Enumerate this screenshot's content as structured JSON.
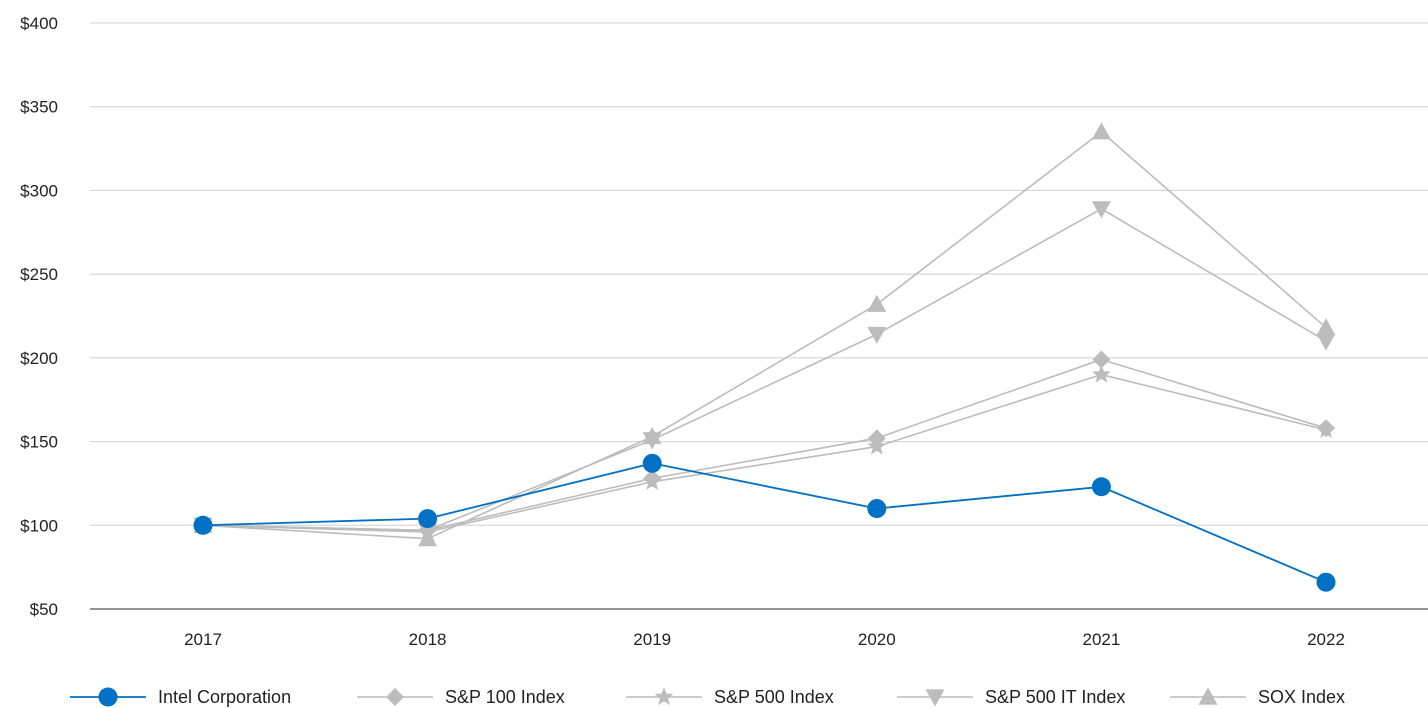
{
  "chart_data": {
    "type": "line",
    "title": "",
    "xlabel": "",
    "ylabel": "",
    "categories": [
      "2017",
      "2018",
      "2019",
      "2020",
      "2021",
      "2022"
    ],
    "ylim": [
      50,
      400
    ],
    "yticks": [
      50,
      100,
      150,
      200,
      250,
      300,
      350,
      400
    ],
    "ytick_labels": [
      "$50",
      "$100",
      "$150",
      "$200",
      "$250",
      "$300",
      "$350",
      "$400"
    ],
    "grid": true,
    "legend_position": "bottom",
    "series": [
      {
        "name": "Intel Corporation",
        "values": [
          100,
          104,
          137,
          110,
          123,
          66
        ],
        "color": "#0071c5",
        "marker": "circle"
      },
      {
        "name": "S&P 100 Index",
        "values": [
          100,
          97,
          128,
          152,
          199,
          158
        ],
        "color": "#bcbcbc",
        "marker": "diamond"
      },
      {
        "name": "S&P 500 Index",
        "values": [
          100,
          96,
          126,
          147,
          190,
          157
        ],
        "color": "#bcbcbc",
        "marker": "star"
      },
      {
        "name": "S&P 500 IT Index",
        "values": [
          100,
          97,
          151,
          214,
          289,
          210
        ],
        "color": "#bcbcbc",
        "marker": "triangle-down"
      },
      {
        "name": "SOX Index",
        "values": [
          100,
          92,
          153,
          232,
          335,
          218
        ],
        "color": "#bcbcbc",
        "marker": "triangle-up"
      }
    ]
  }
}
